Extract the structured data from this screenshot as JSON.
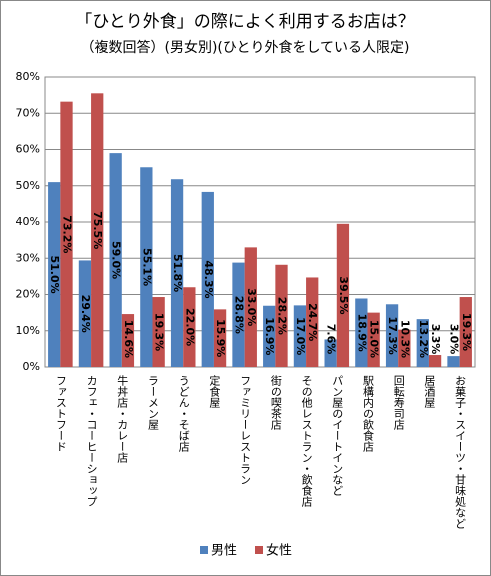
{
  "chart_data": {
    "type": "bar",
    "title": "「ひとり外食」の際によく利用するお店は？",
    "subtitle": "（複数回答）(男女別)(ひとり外食をしている人限定)",
    "categories": [
      "ファストフード",
      "カフェ・コーヒーショップ",
      "牛丼店・カレー店",
      "ラーメン屋",
      "うどん・そば店",
      "定食屋",
      "ファミリーレストラン",
      "街の喫茶店",
      "その他レストラン・飲食店",
      "パン屋のイートインなど",
      "駅構内の飲食店",
      "回転寿司店",
      "居酒屋",
      "お菓子・スイーツ・甘味処など"
    ],
    "series": [
      {
        "name": "男性",
        "color": "#4f81bd",
        "values": [
          51.0,
          29.4,
          59.0,
          55.1,
          51.8,
          48.3,
          28.8,
          16.9,
          17.0,
          7.6,
          18.9,
          17.3,
          13.2,
          3.0
        ],
        "value_labels": [
          "51.0%",
          "29.4%",
          "59.0%",
          "55.1%",
          "51.8%",
          "48.3%",
          "28.8%",
          "16.9%",
          "17.0%",
          "7.6%",
          "18.9%",
          "17.3%",
          "13.2%",
          "3.0%"
        ]
      },
      {
        "name": "女性",
        "color": "#c0504d",
        "values": [
          73.2,
          75.5,
          14.6,
          19.3,
          22.0,
          15.9,
          33.0,
          28.2,
          24.7,
          39.5,
          15.0,
          10.3,
          3.3,
          19.3
        ],
        "value_labels": [
          "73.2%",
          "75.5%",
          "14.6%",
          "19.3%",
          "22.0%",
          "15.9%",
          "33.0%",
          "28.2%",
          "24.7%",
          "39.5%",
          "15.0%",
          "10.3%",
          "3.3%",
          "19.3%"
        ]
      }
    ],
    "ylim": [
      0,
      80
    ],
    "yticks": [
      {
        "value": 0,
        "label": "0%"
      },
      {
        "value": 10,
        "label": "10%"
      },
      {
        "value": 20,
        "label": "20%"
      },
      {
        "value": 30,
        "label": "30%"
      },
      {
        "value": 40,
        "label": "40%"
      },
      {
        "value": 50,
        "label": "50%"
      },
      {
        "value": 60,
        "label": "60%"
      },
      {
        "value": 70,
        "label": "70%"
      },
      {
        "value": 80,
        "label": "80%"
      }
    ],
    "grid": true,
    "legend": "bottom"
  }
}
